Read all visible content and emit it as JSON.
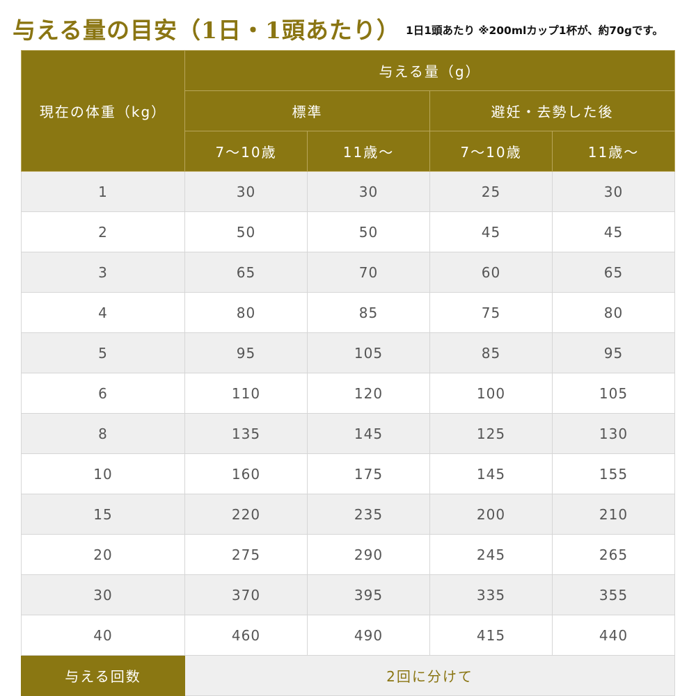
{
  "header": {
    "title": "与える量の目安（1日・1頭あたり）",
    "note": "1日1頭あたり ※200mlカップ1杯が、約70gです。"
  },
  "table": {
    "weight_header": "現在の体重（kg）",
    "amount_header": "与える量（g）",
    "groups": [
      "標準",
      "避妊・去勢した後"
    ],
    "age_headers": [
      "7〜10歳",
      "11歳〜",
      "7〜10歳",
      "11歳〜"
    ],
    "rows": [
      {
        "weight": "1",
        "values": [
          "30",
          "30",
          "25",
          "30"
        ]
      },
      {
        "weight": "2",
        "values": [
          "50",
          "50",
          "45",
          "45"
        ]
      },
      {
        "weight": "3",
        "values": [
          "65",
          "70",
          "60",
          "65"
        ]
      },
      {
        "weight": "4",
        "values": [
          "80",
          "85",
          "75",
          "80"
        ]
      },
      {
        "weight": "5",
        "values": [
          "95",
          "105",
          "85",
          "95"
        ]
      },
      {
        "weight": "6",
        "values": [
          "110",
          "120",
          "100",
          "105"
        ]
      },
      {
        "weight": "8",
        "values": [
          "135",
          "145",
          "125",
          "130"
        ]
      },
      {
        "weight": "10",
        "values": [
          "160",
          "175",
          "145",
          "155"
        ]
      },
      {
        "weight": "15",
        "values": [
          "220",
          "235",
          "200",
          "210"
        ]
      },
      {
        "weight": "20",
        "values": [
          "275",
          "290",
          "245",
          "265"
        ]
      },
      {
        "weight": "30",
        "values": [
          "370",
          "395",
          "335",
          "355"
        ]
      },
      {
        "weight": "40",
        "values": [
          "460",
          "490",
          "415",
          "440"
        ]
      }
    ],
    "footer": {
      "label": "与える回数",
      "value": "2回に分けて"
    }
  },
  "colors": {
    "accent": "#8a7712",
    "title": "#8a7512",
    "row_alt": "#efefef"
  }
}
